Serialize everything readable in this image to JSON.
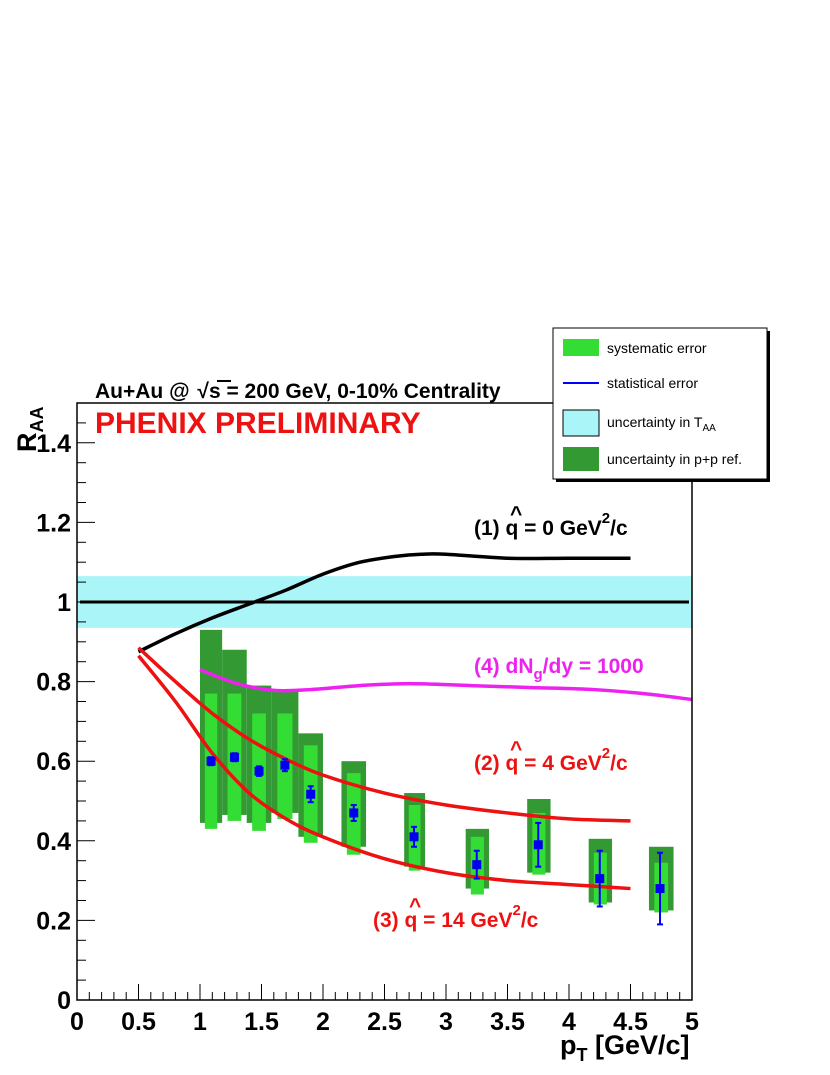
{
  "colors": {
    "systematic": "#33dd33",
    "pp_ref": "#339933",
    "taa": "#aaf5f8",
    "stat": "#0000ff",
    "marker": "#0000ee",
    "prelim": "#ee1111",
    "curve_q0": "#000000",
    "curve_q4": "#ee1111",
    "curve_q14": "#ee1111",
    "curve_dng": "#ee22ee"
  },
  "title": {
    "prefix": "Au+Au @ ",
    "sqrt_s": "s",
    "suffix": " = 200 GeV, 0-10% Centrality"
  },
  "preliminary": "PHENIX PRELIMINARY",
  "legend": {
    "systematic": "systematic error",
    "statistical": "statistical error",
    "taa_main": "uncertainty in T",
    "taa_sub": "AA",
    "ppref": "uncertainty in p+p ref."
  },
  "annotations": {
    "q0": {
      "pre": "(1) ",
      "q": "q",
      "hat": "^",
      "mid": " = 0 GeV",
      "sup": "2",
      "post": "/c"
    },
    "q4": {
      "pre": "(2) ",
      "q": "q",
      "hat": "^",
      "mid": " = 4 GeV",
      "sup": "2",
      "post": "/c"
    },
    "q14": {
      "pre": "(3) ",
      "q": "q",
      "hat": "^",
      "mid": " = 14 GeV",
      "sup": "2",
      "post": "/c"
    },
    "dng": {
      "pre": "(4) dN",
      "sub": "g",
      "post": "/dy = 1000"
    }
  },
  "chart_data": {
    "type": "scatter",
    "xlabel": {
      "main": "p",
      "sub": "T",
      "post": " [GeV/c]"
    },
    "ylabel": {
      "main": "R",
      "sub": "AA"
    },
    "xlim": [
      0,
      5
    ],
    "ylim": [
      0,
      1.5
    ],
    "xticks": [
      "0",
      "0.5",
      "1",
      "1.5",
      "2",
      "2.5",
      "3",
      "3.5",
      "4",
      "4.5",
      "5"
    ],
    "yticks": [
      "0",
      "0.2",
      "0.4",
      "0.6",
      "0.8",
      "1",
      "1.2",
      "1.4"
    ],
    "grid": false,
    "legend_position": "top-right",
    "reference_line": 1.0,
    "taa_band": [
      0.935,
      1.065
    ],
    "points": [
      {
        "x": 1.09,
        "y": 0.6,
        "stat": 0.01,
        "sys": [
          0.43,
          0.77
        ],
        "pp": [
          0.445,
          0.93
        ],
        "xw": [
          1.0,
          1.18
        ]
      },
      {
        "x": 1.28,
        "y": 0.61,
        "stat": 0.01,
        "sys": [
          0.45,
          0.77
        ],
        "pp": [
          0.465,
          0.88
        ],
        "xw": [
          1.18,
          1.38
        ]
      },
      {
        "x": 1.48,
        "y": 0.575,
        "stat": 0.012,
        "sys": [
          0.425,
          0.72
        ],
        "pp": [
          0.445,
          0.79
        ],
        "xw": [
          1.38,
          1.58
        ]
      },
      {
        "x": 1.69,
        "y": 0.59,
        "stat": 0.015,
        "sys": [
          0.455,
          0.72
        ],
        "pp": [
          0.47,
          0.78
        ],
        "xw": [
          1.58,
          1.8
        ]
      },
      {
        "x": 1.9,
        "y": 0.517,
        "stat": 0.02,
        "sys": [
          0.395,
          0.64
        ],
        "pp": [
          0.41,
          0.67
        ],
        "xw": [
          1.8,
          2.0
        ]
      },
      {
        "x": 2.25,
        "y": 0.47,
        "stat": 0.02,
        "sys": [
          0.365,
          0.57
        ],
        "pp": [
          0.385,
          0.6
        ],
        "xw": [
          2.15,
          2.35
        ]
      },
      {
        "x": 2.74,
        "y": 0.41,
        "stat": 0.025,
        "sys": [
          0.325,
          0.49
        ],
        "pp": [
          0.335,
          0.52
        ],
        "xw": [
          2.66,
          2.83
        ]
      },
      {
        "x": 3.25,
        "y": 0.34,
        "stat": 0.035,
        "sys": [
          0.265,
          0.41
        ],
        "pp": [
          0.28,
          0.43
        ],
        "xw": [
          3.16,
          3.35
        ]
      },
      {
        "x": 3.75,
        "y": 0.39,
        "stat": 0.055,
        "sys": [
          0.315,
          0.47
        ],
        "pp": [
          0.32,
          0.505
        ],
        "xw": [
          3.66,
          3.85
        ]
      },
      {
        "x": 4.25,
        "y": 0.305,
        "stat": 0.07,
        "sys": [
          0.24,
          0.37
        ],
        "pp": [
          0.245,
          0.405
        ],
        "xw": [
          4.16,
          4.35
        ]
      },
      {
        "x": 4.74,
        "y": 0.28,
        "stat": 0.09,
        "sys": [
          0.22,
          0.345
        ],
        "pp": [
          0.225,
          0.385
        ],
        "xw": [
          4.65,
          4.85
        ]
      }
    ],
    "series": [
      {
        "name": "(1) q = 0 GeV2/c",
        "color": "#000000",
        "x": [
          0.5,
          0.8,
          1.1,
          1.4,
          1.7,
          2.0,
          2.3,
          2.6,
          2.8,
          3.0,
          3.5,
          4.0,
          4.5
        ],
        "y": [
          0.875,
          0.92,
          0.96,
          0.995,
          1.03,
          1.07,
          1.1,
          1.115,
          1.12,
          1.12,
          1.11,
          1.11,
          1.11
        ]
      },
      {
        "name": "(2) q = 4 GeV2/c",
        "color": "#ee1111",
        "x": [
          0.5,
          0.8,
          1.1,
          1.4,
          1.7,
          2.0,
          2.5,
          3.0,
          3.5,
          4.0,
          4.5
        ],
        "y": [
          0.885,
          0.8,
          0.72,
          0.655,
          0.605,
          0.565,
          0.52,
          0.49,
          0.47,
          0.455,
          0.45
        ]
      },
      {
        "name": "(3) q = 14 GeV2/c",
        "color": "#ee1111",
        "x": [
          0.5,
          0.8,
          1.1,
          1.4,
          1.7,
          2.0,
          2.5,
          3.0,
          3.5,
          4.0,
          4.5
        ],
        "y": [
          0.865,
          0.75,
          0.62,
          0.52,
          0.455,
          0.41,
          0.355,
          0.32,
          0.3,
          0.29,
          0.28
        ]
      },
      {
        "name": "(4) dNg/dy = 1000",
        "color": "#ee22ee",
        "x": [
          1.0,
          1.3,
          1.6,
          1.9,
          2.3,
          2.7,
          3.2,
          3.7,
          4.2,
          4.6,
          5.0
        ],
        "y": [
          0.83,
          0.795,
          0.778,
          0.78,
          0.79,
          0.795,
          0.79,
          0.785,
          0.78,
          0.77,
          0.755
        ]
      }
    ]
  }
}
